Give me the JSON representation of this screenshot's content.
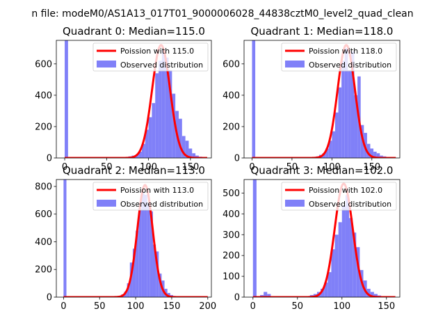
{
  "suptitle": "n file: modeM0/AS1A13_017T01_9000006028_44838cztM0_level2_quad_clean",
  "chart_data": [
    {
      "type": "bar",
      "title": "Quadrant 0: Median=115.0",
      "xlim": [
        -10,
        175
      ],
      "ylim": [
        0,
        750
      ],
      "xticks": [
        0,
        50,
        100,
        150
      ],
      "yticks": [
        0,
        200,
        400,
        600
      ],
      "legend": "top-right",
      "poisson": {
        "label": "Poission with 115.0",
        "mean": 115.0,
        "peak": 720,
        "color": "#ff0000"
      },
      "histogram": {
        "label": "Observed distribution",
        "color": "#8080f8",
        "bin_width": 4,
        "bins": [
          [
            0,
            750
          ],
          [
            72,
            5
          ],
          [
            76,
            10
          ],
          [
            80,
            15
          ],
          [
            84,
            20
          ],
          [
            88,
            40
          ],
          [
            92,
            90
          ],
          [
            96,
            180
          ],
          [
            100,
            260
          ],
          [
            104,
            350
          ],
          [
            108,
            540
          ],
          [
            112,
            620
          ],
          [
            116,
            690
          ],
          [
            120,
            640
          ],
          [
            124,
            560
          ],
          [
            128,
            410
          ],
          [
            132,
            300
          ],
          [
            136,
            250
          ],
          [
            140,
            140
          ],
          [
            144,
            110
          ],
          [
            148,
            60
          ],
          [
            152,
            30
          ],
          [
            156,
            15
          ],
          [
            160,
            8
          ],
          [
            164,
            5
          ]
        ]
      }
    },
    {
      "type": "bar",
      "title": "Quadrant 1: Median=118.0",
      "xlim": [
        -10,
        185
      ],
      "ylim": [
        0,
        750
      ],
      "xticks": [
        0,
        50,
        100,
        150
      ],
      "yticks": [
        0,
        200,
        400,
        600
      ],
      "legend": "top-right",
      "poisson": {
        "label": "Poission with 118.0",
        "mean": 118.0,
        "peak": 720,
        "color": "#ff0000"
      },
      "histogram": {
        "label": "Observed distribution",
        "color": "#8080f8",
        "bin_width": 4,
        "bins": [
          [
            0,
            750
          ],
          [
            80,
            10
          ],
          [
            84,
            20
          ],
          [
            88,
            30
          ],
          [
            92,
            60
          ],
          [
            96,
            110
          ],
          [
            100,
            170
          ],
          [
            104,
            290
          ],
          [
            108,
            450
          ],
          [
            112,
            620
          ],
          [
            116,
            700
          ],
          [
            120,
            560
          ],
          [
            124,
            680
          ],
          [
            128,
            400
          ],
          [
            132,
            520
          ],
          [
            136,
            210
          ],
          [
            140,
            160
          ],
          [
            144,
            90
          ],
          [
            148,
            60
          ],
          [
            152,
            40
          ],
          [
            156,
            30
          ],
          [
            160,
            15
          ],
          [
            164,
            10
          ],
          [
            168,
            5
          ]
        ]
      }
    },
    {
      "type": "bar",
      "title": "Quadrant 2: Median=113.0",
      "xlim": [
        -10,
        205
      ],
      "ylim": [
        0,
        850
      ],
      "xticks": [
        0,
        50,
        100,
        150,
        200
      ],
      "yticks": [
        0,
        200,
        400,
        600,
        800
      ],
      "legend": "top-right",
      "poisson": {
        "label": "Poission with 113.0",
        "mean": 113.0,
        "peak": 810,
        "color": "#ff0000"
      },
      "histogram": {
        "label": "Observed distribution",
        "color": "#8080f8",
        "bin_width": 4,
        "bins": [
          [
            0,
            850
          ],
          [
            76,
            10
          ],
          [
            80,
            20
          ],
          [
            84,
            40
          ],
          [
            88,
            100
          ],
          [
            92,
            250
          ],
          [
            96,
            350
          ],
          [
            100,
            480
          ],
          [
            104,
            640
          ],
          [
            108,
            760
          ],
          [
            112,
            740
          ],
          [
            116,
            680
          ],
          [
            120,
            620
          ],
          [
            124,
            380
          ],
          [
            128,
            330
          ],
          [
            132,
            170
          ],
          [
            136,
            120
          ],
          [
            140,
            60
          ],
          [
            144,
            30
          ],
          [
            148,
            15
          ],
          [
            152,
            8
          ]
        ]
      }
    },
    {
      "type": "bar",
      "title": "Quadrant 3: Median=102.0",
      "xlim": [
        -10,
        165
      ],
      "ylim": [
        0,
        565
      ],
      "xticks": [
        0,
        50,
        100,
        150
      ],
      "yticks": [
        0,
        100,
        200,
        300,
        400,
        500
      ],
      "legend": "top-right",
      "poisson": {
        "label": "Poission with 102.0",
        "mean": 102.0,
        "peak": 545,
        "color": "#ff0000"
      },
      "histogram": {
        "label": "Observed distribution",
        "color": "#8080f8",
        "bin_width": 4,
        "bins": [
          [
            0,
            565
          ],
          [
            8,
            10
          ],
          [
            12,
            25
          ],
          [
            16,
            15
          ],
          [
            20,
            5
          ],
          [
            60,
            5
          ],
          [
            64,
            10
          ],
          [
            68,
            15
          ],
          [
            72,
            25
          ],
          [
            76,
            40
          ],
          [
            80,
            70
          ],
          [
            84,
            120
          ],
          [
            88,
            230
          ],
          [
            92,
            300
          ],
          [
            96,
            360
          ],
          [
            100,
            440
          ],
          [
            104,
            490
          ],
          [
            108,
            380
          ],
          [
            112,
            310
          ],
          [
            116,
            240
          ],
          [
            120,
            130
          ],
          [
            124,
            80
          ],
          [
            128,
            40
          ],
          [
            132,
            25
          ],
          [
            136,
            15
          ],
          [
            140,
            8
          ]
        ]
      }
    }
  ]
}
